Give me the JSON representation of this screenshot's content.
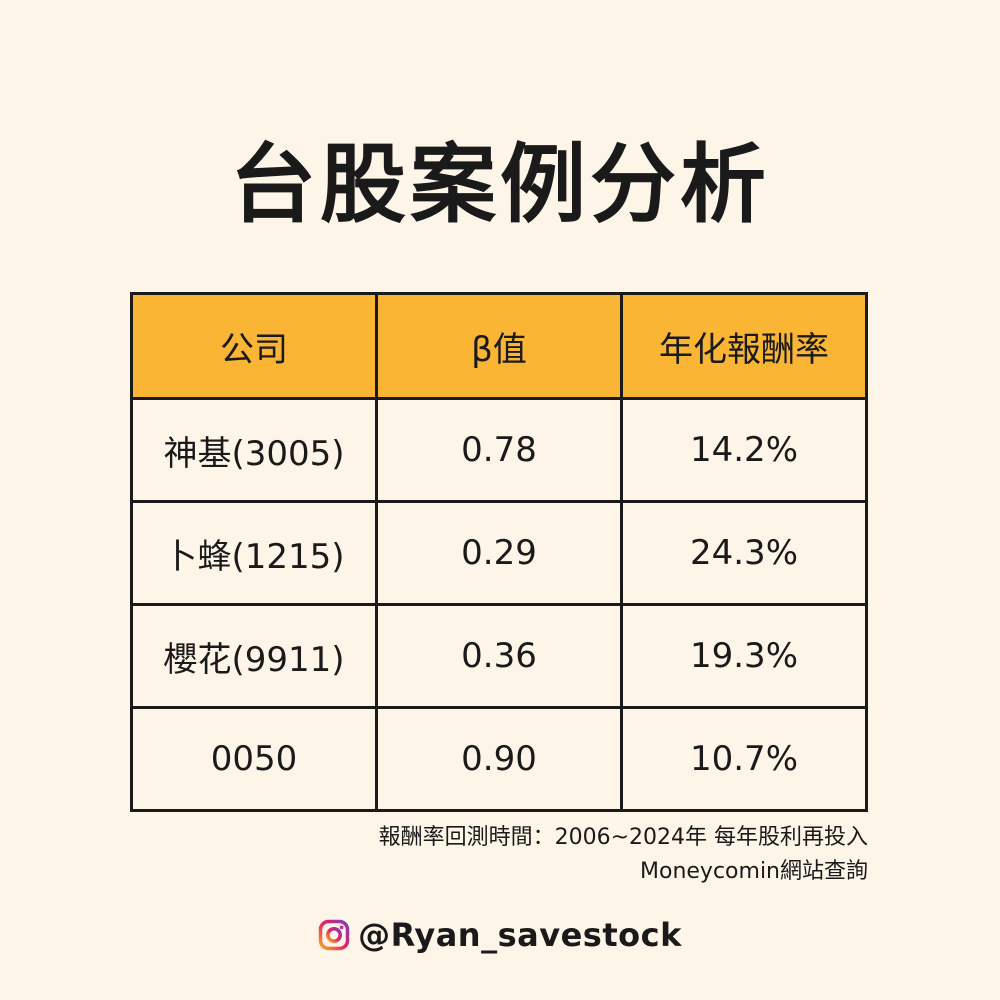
{
  "title": "台股案例分析",
  "table": {
    "headers": [
      "公司",
      "β值",
      "年化報酬率"
    ],
    "rows": [
      [
        "神基(3005)",
        "0.78",
        "14.2%"
      ],
      [
        "卜蜂(1215)",
        "0.29",
        "24.3%"
      ],
      [
        "櫻花(9911)",
        "0.36",
        "19.3%"
      ],
      [
        "0050",
        "0.90",
        "10.7%"
      ]
    ]
  },
  "notes": {
    "line1": "報酬率回測時間：2006~2024年 每年股利再投入",
    "line2": "Moneycomin網站查詢"
  },
  "footer": {
    "icon": "instagram-icon",
    "handle": "@Ryan_savestock"
  },
  "colors": {
    "background": "#fdf5e8",
    "header_fill": "#fbb535",
    "border": "#1a1a1a"
  }
}
